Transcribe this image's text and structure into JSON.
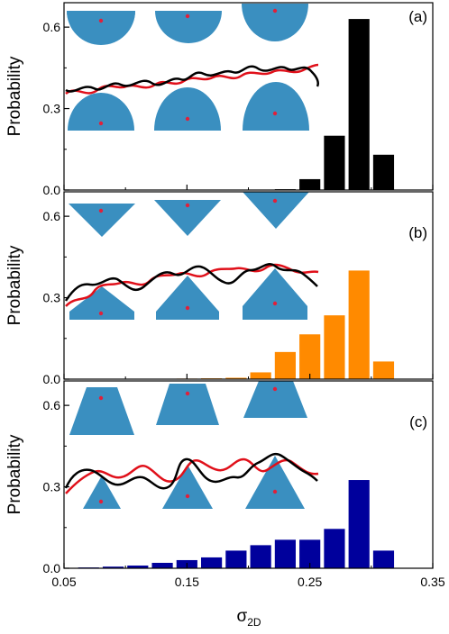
{
  "figure": {
    "ylabel": "Probability",
    "xlabel_main": "σ",
    "xlabel_sub": "2D",
    "colors": {
      "black": "#000000",
      "orange": "#ff8a00",
      "blue": "#00009c",
      "shape": "#3a8fc0",
      "dot": "#e0203a",
      "chain_red": "#e0101a"
    }
  },
  "chart_data": [
    {
      "type": "bar",
      "panel_label": "(a)",
      "color": "#000000",
      "inset_shape": "semicircle",
      "x": [
        0.23,
        0.25,
        0.27,
        0.29,
        0.31
      ],
      "values": [
        0.003,
        0.04,
        0.2,
        0.63,
        0.13
      ],
      "bar_width": 0.017,
      "xlim": [
        0.05,
        0.35
      ],
      "ylim": [
        0,
        0.69
      ],
      "yticks": [
        0.0,
        0.3,
        0.6
      ],
      "ytick_labels": [
        "0.0",
        "0.3",
        "0.6"
      ],
      "ylabel": "Probability"
    },
    {
      "type": "bar",
      "panel_label": "(b)",
      "color": "#ff8a00",
      "inset_shape": "diamond",
      "x": [
        0.07,
        0.09,
        0.11,
        0.13,
        0.15,
        0.17,
        0.19,
        0.21,
        0.23,
        0.25,
        0.27,
        0.29,
        0.31
      ],
      "values": [
        0.0005,
        0.0005,
        0.001,
        0.001,
        0.002,
        0.003,
        0.005,
        0.025,
        0.1,
        0.165,
        0.235,
        0.4,
        0.065
      ],
      "bar_width": 0.017,
      "xlim": [
        0.05,
        0.35
      ],
      "ylim": [
        0,
        0.69
      ],
      "yticks": [
        0.0,
        0.3,
        0.6
      ],
      "ytick_labels": [
        "0.0",
        "0.3",
        "0.6"
      ],
      "ylabel": "Probability"
    },
    {
      "type": "bar",
      "panel_label": "(c)",
      "color": "#00009c",
      "inset_shape": "triangle",
      "x": [
        0.07,
        0.09,
        0.11,
        0.13,
        0.15,
        0.17,
        0.19,
        0.21,
        0.23,
        0.25,
        0.27,
        0.29,
        0.31
      ],
      "values": [
        0.003,
        0.006,
        0.01,
        0.02,
        0.03,
        0.04,
        0.065,
        0.085,
        0.105,
        0.105,
        0.145,
        0.325,
        0.065
      ],
      "bar_width": 0.017,
      "xlim": [
        0.05,
        0.35
      ],
      "ylim": [
        0,
        0.69
      ],
      "yticks": [
        0.0,
        0.3,
        0.6
      ],
      "ytick_labels": [
        "0.0",
        "0.3",
        "0.6"
      ],
      "ylabel": "Probability",
      "xticks": [
        0.05,
        0.15,
        0.25,
        0.35
      ],
      "xtick_labels": [
        "0.05",
        "0.15",
        "0.25",
        "0.35"
      ]
    }
  ]
}
